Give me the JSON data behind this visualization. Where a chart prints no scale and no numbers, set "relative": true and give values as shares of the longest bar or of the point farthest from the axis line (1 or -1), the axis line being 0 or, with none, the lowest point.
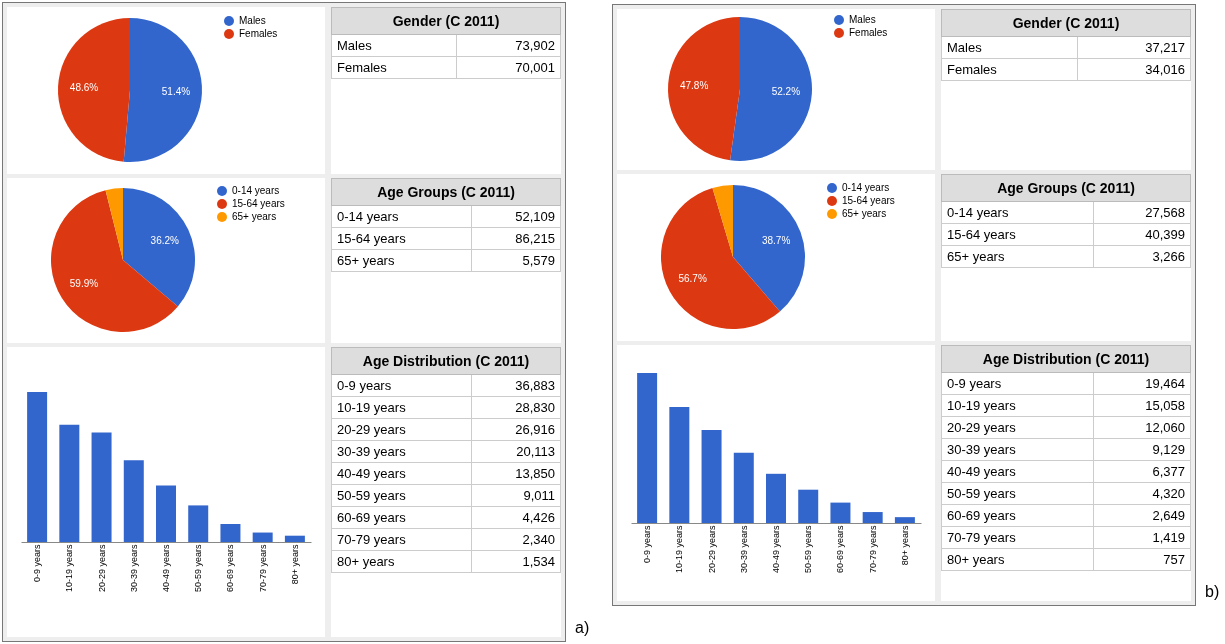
{
  "chart_data": [
    {
      "type": "pie",
      "categories": [
        "Males",
        "Females"
      ],
      "values": [
        51.4,
        48.6
      ],
      "colors": [
        "#3366cc",
        "#dc3912"
      ],
      "value_labels": [
        "51.4%",
        "48.6%"
      ],
      "legend": "right"
    },
    {
      "type": "other",
      "title": "Gender (C 2011)",
      "categories": [
        "Males",
        "Females"
      ],
      "value_labels": [
        "73,902",
        "70,001"
      ]
    },
    {
      "type": "pie",
      "categories": [
        "0-14 years",
        "15-64 years",
        "65+ years"
      ],
      "values": [
        36.2,
        59.9,
        3.9
      ],
      "colors": [
        "#3366cc",
        "#dc3912",
        "#ff9900"
      ],
      "value_labels": [
        "36.2%",
        "59.9%",
        null
      ],
      "legend": "right"
    },
    {
      "type": "other",
      "title": "Age Groups (C 2011)",
      "categories": [
        "0-14 years",
        "15-64 years",
        "65+ years"
      ],
      "value_labels": [
        "52,109",
        "86,215",
        "5,579"
      ]
    },
    {
      "type": "bar",
      "relative": true,
      "categories": [
        "0-9 years",
        "10-19 years",
        "20-29 years",
        "30-39 years",
        "40-49 years",
        "50-59 years",
        "60-69 years",
        "70-79 years",
        "80+ years"
      ],
      "values": [
        1,
        0.782,
        0.73,
        0.545,
        0.376,
        0.244,
        0.12,
        0.063,
        0.042
      ],
      "color": "#3366cc"
    },
    {
      "type": "other",
      "title": "Age Distribution (C 2011)",
      "categories": [
        "0-9 years",
        "10-19 years",
        "20-29 years",
        "30-39 years",
        "40-49 years",
        "50-59 years",
        "60-69 years",
        "70-79 years",
        "80+ years"
      ],
      "value_labels": [
        "36,883",
        "28,830",
        "26,916",
        "20,113",
        "13,850",
        "9,011",
        "4,426",
        "2,340",
        "1,534"
      ],
      "annotations": [
        "a)"
      ]
    },
    {
      "type": "pie",
      "categories": [
        "Males",
        "Females"
      ],
      "values": [
        52.2,
        47.8
      ],
      "colors": [
        "#3366cc",
        "#dc3912"
      ],
      "value_labels": [
        "52.2%",
        "47.8%"
      ],
      "legend": "right"
    },
    {
      "type": "other",
      "title": "Gender (C 2011)",
      "categories": [
        "Males",
        "Females"
      ],
      "value_labels": [
        "37,217",
        "34,016"
      ]
    },
    {
      "type": "pie",
      "categories": [
        "0-14 years",
        "15-64 years",
        "65+ years"
      ],
      "values": [
        38.7,
        56.7,
        4.6
      ],
      "colors": [
        "#3366cc",
        "#dc3912",
        "#ff9900"
      ],
      "value_labels": [
        "38.7%",
        "56.7%",
        null
      ],
      "legend": "right"
    },
    {
      "type": "other",
      "title": "Age Groups (C 2011)",
      "categories": [
        "0-14 years",
        "15-64 years",
        "65+ years"
      ],
      "value_labels": [
        "27,568",
        "40,399",
        "3,266"
      ]
    },
    {
      "type": "bar",
      "relative": true,
      "categories": [
        "0-9 years",
        "10-19 years",
        "20-29 years",
        "30-39 years",
        "40-49 years",
        "50-59 years",
        "60-69 years",
        "70-79 years",
        "80+ years"
      ],
      "values": [
        1,
        0.774,
        0.62,
        0.469,
        0.328,
        0.222,
        0.136,
        0.073,
        0.039
      ],
      "color": "#3366cc"
    },
    {
      "type": "other",
      "title": "Age Distribution (C 2011)",
      "categories": [
        "0-9 years",
        "10-19 years",
        "20-29 years",
        "30-39 years",
        "40-49 years",
        "50-59 years",
        "60-69 years",
        "70-79 years",
        "80+ years"
      ],
      "value_labels": [
        "19,464",
        "15,058",
        "12,060",
        "9,129",
        "6,377",
        "4,320",
        "2,649",
        "1,419",
        "757"
      ],
      "annotations": [
        "b)"
      ]
    }
  ]
}
